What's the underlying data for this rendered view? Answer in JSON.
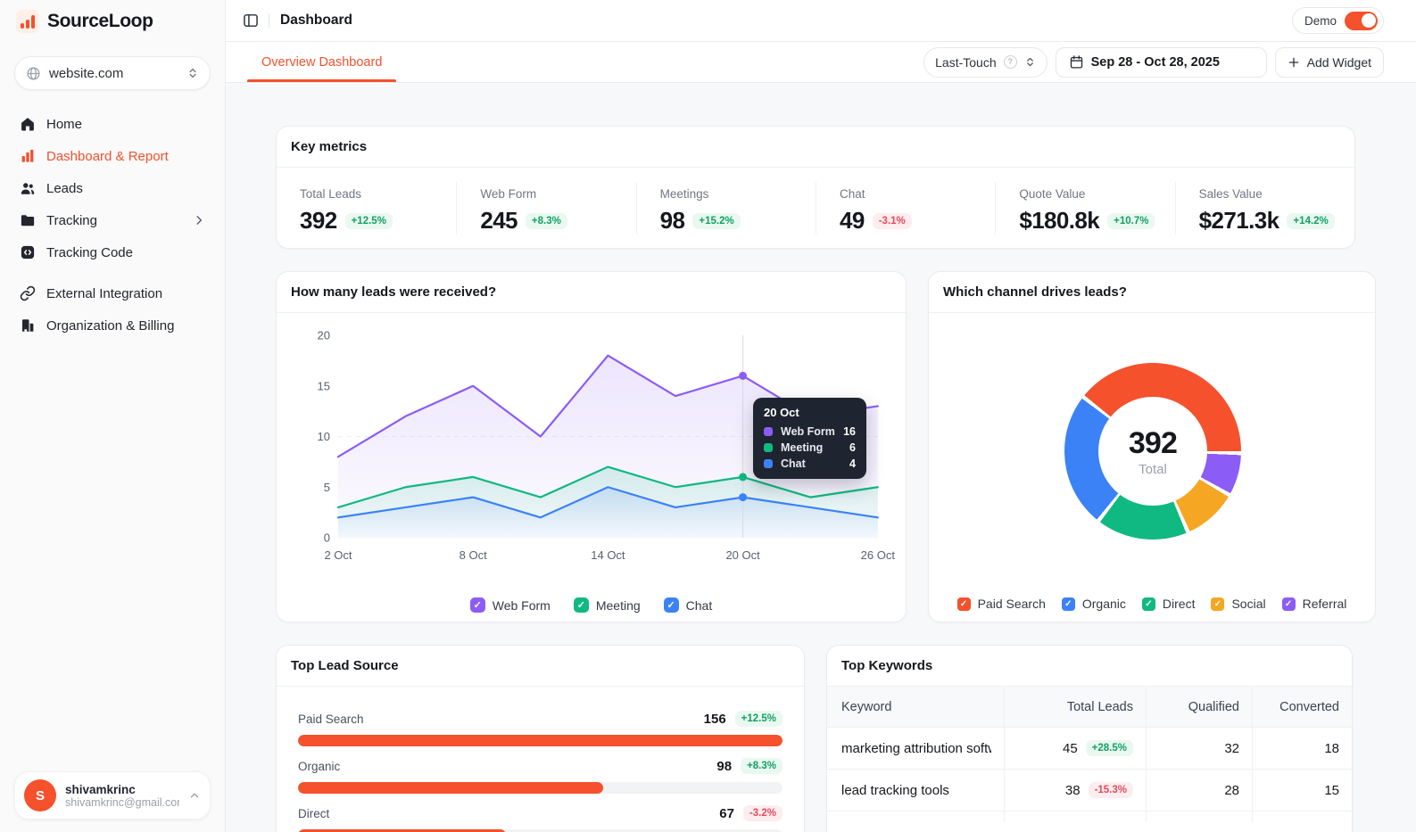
{
  "brand": {
    "name": "SourceLoop"
  },
  "sidebar": {
    "site_selector": {
      "value": "website.com"
    },
    "items": [
      {
        "label": "Home"
      },
      {
        "label": "Dashboard & Report",
        "active": true
      },
      {
        "label": "Leads"
      },
      {
        "label": "Tracking",
        "has_submenu": true
      },
      {
        "label": "Tracking Code"
      },
      {
        "label": "External Integration"
      },
      {
        "label": "Organization & Billing"
      }
    ],
    "user": {
      "initial": "S",
      "name": "shivamkrinc",
      "email": "shivamkrinc@gmail.com"
    }
  },
  "header": {
    "title": "Dashboard",
    "demo_label": "Demo",
    "demo_on": true
  },
  "toolbar": {
    "tab": "Overview Dashboard",
    "attribution": "Last-Touch",
    "date_range": "Sep 28 - Oct 28, 2025",
    "add_widget": "Add Widget"
  },
  "key_metrics": {
    "title": "Key metrics",
    "metrics": [
      {
        "label": "Total Leads",
        "value": "392",
        "change": "+12.5%",
        "direction": "up"
      },
      {
        "label": "Web Form",
        "value": "245",
        "change": "+8.3%",
        "direction": "up"
      },
      {
        "label": "Meetings",
        "value": "98",
        "change": "+15.2%",
        "direction": "up"
      },
      {
        "label": "Chat",
        "value": "49",
        "change": "-3.1%",
        "direction": "down"
      },
      {
        "label": "Quote Value",
        "value": "$180.8k",
        "change": "+10.7%",
        "direction": "up"
      },
      {
        "label": "Sales Value",
        "value": "$271.3k",
        "change": "+14.2%",
        "direction": "up"
      }
    ]
  },
  "chart_data": [
    {
      "type": "area",
      "title": "How many leads were received?",
      "x": [
        "2 Oct",
        "5 Oct",
        "8 Oct",
        "11 Oct",
        "14 Oct",
        "17 Oct",
        "20 Oct",
        "23 Oct",
        "26 Oct"
      ],
      "x_tick_labels": [
        "2 Oct",
        "8 Oct",
        "14 Oct",
        "20 Oct",
        "26 Oct"
      ],
      "ylim": [
        0,
        20
      ],
      "yticks": [
        0,
        5,
        10,
        15,
        20
      ],
      "series": [
        {
          "name": "Web Form",
          "color": "#8b5cf6",
          "values": [
            8,
            12,
            15,
            10,
            18,
            14,
            16,
            12,
            13
          ]
        },
        {
          "name": "Meeting",
          "color": "#10b981",
          "values": [
            3,
            5,
            6,
            4,
            7,
            5,
            6,
            4,
            5
          ]
        },
        {
          "name": "Chat",
          "color": "#3b82f6",
          "values": [
            2,
            3,
            4,
            2,
            5,
            3,
            4,
            3,
            2
          ]
        }
      ],
      "hover_index": 6,
      "tooltip": {
        "date": "20 Oct",
        "rows": [
          {
            "name": "Web Form",
            "value": "16"
          },
          {
            "name": "Meeting",
            "value": "6"
          },
          {
            "name": "Chat",
            "value": "4"
          }
        ]
      },
      "legend_position": "bottom"
    },
    {
      "type": "donut",
      "title": "Which channel drives leads?",
      "center_value": "392",
      "center_label": "Total",
      "start_angle_deg": -52,
      "segments": [
        {
          "name": "Paid Search",
          "value": 156,
          "color": "#f4512c"
        },
        {
          "name": "Referral",
          "value": 31,
          "color": "#8b5cf6"
        },
        {
          "name": "Social",
          "value": 40,
          "color": "#f5a623"
        },
        {
          "name": "Direct",
          "value": 67,
          "color": "#10b981"
        },
        {
          "name": "Organic",
          "value": 98,
          "color": "#3b82f6"
        }
      ],
      "legend_order": [
        "Paid Search",
        "Organic",
        "Direct",
        "Social",
        "Referral"
      ]
    }
  ],
  "top_lead_source": {
    "title": "Top Lead Source",
    "rows": [
      {
        "label": "Paid Search",
        "value": "156",
        "change": "+12.5%",
        "direction": "up",
        "pct": "100%"
      },
      {
        "label": "Organic",
        "value": "98",
        "change": "+8.3%",
        "direction": "up",
        "pct": "63%"
      },
      {
        "label": "Direct",
        "value": "67",
        "change": "-3.2%",
        "direction": "down",
        "pct": "43%"
      }
    ]
  },
  "top_keywords": {
    "title": "Top Keywords",
    "columns": [
      "Keyword",
      "Total Leads",
      "Qualified",
      "Converted"
    ],
    "rows": [
      {
        "keyword": "marketing attribution software",
        "total_leads": "45",
        "change": "+28.5%",
        "direction": "up",
        "qualified": "32",
        "converted": "18"
      },
      {
        "keyword": "lead tracking tools",
        "total_leads": "38",
        "change": "-15.3%",
        "direction": "down",
        "qualified": "28",
        "converted": "15"
      }
    ]
  },
  "colors": {
    "accent": "#f4512c",
    "positive": "#12a164",
    "negative": "#e5495c",
    "page_bg": "#f7f8fa"
  }
}
